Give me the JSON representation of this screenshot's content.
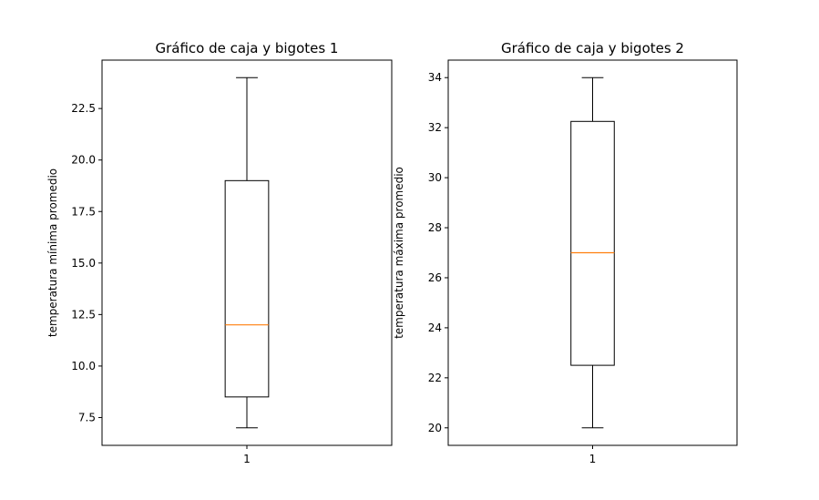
{
  "chart_data": [
    {
      "type": "box",
      "title": "Gráfico de caja y bigotes 1",
      "ylabel": "temperatura mínima promedio",
      "categories": [
        "1"
      ],
      "ylim": [
        6.15,
        24.85
      ],
      "yticks": [
        7.5,
        10.0,
        12.5,
        15.0,
        17.5,
        20.0,
        22.5
      ],
      "ytick_labels": [
        "7.5",
        "10.0",
        "12.5",
        "15.0",
        "17.5",
        "20.0",
        "22.5"
      ],
      "boxes": [
        {
          "whisker_low": 7,
          "q1": 8.5,
          "median": 12,
          "q3": 19,
          "whisker_high": 24
        }
      ],
      "median_color": "#ff7f0e"
    },
    {
      "type": "box",
      "title": "Gráfico de caja y bigotes 2",
      "ylabel": "temperatura máxima promedio",
      "categories": [
        "1"
      ],
      "ylim": [
        19.3,
        34.7
      ],
      "yticks": [
        20,
        22,
        24,
        26,
        28,
        30,
        32,
        34
      ],
      "ytick_labels": [
        "20",
        "22",
        "24",
        "26",
        "28",
        "30",
        "32",
        "34"
      ],
      "boxes": [
        {
          "whisker_low": 20,
          "q1": 22.5,
          "median": 27,
          "q3": 32.25,
          "whisker_high": 34
        }
      ],
      "median_color": "#ff7f0e"
    }
  ]
}
